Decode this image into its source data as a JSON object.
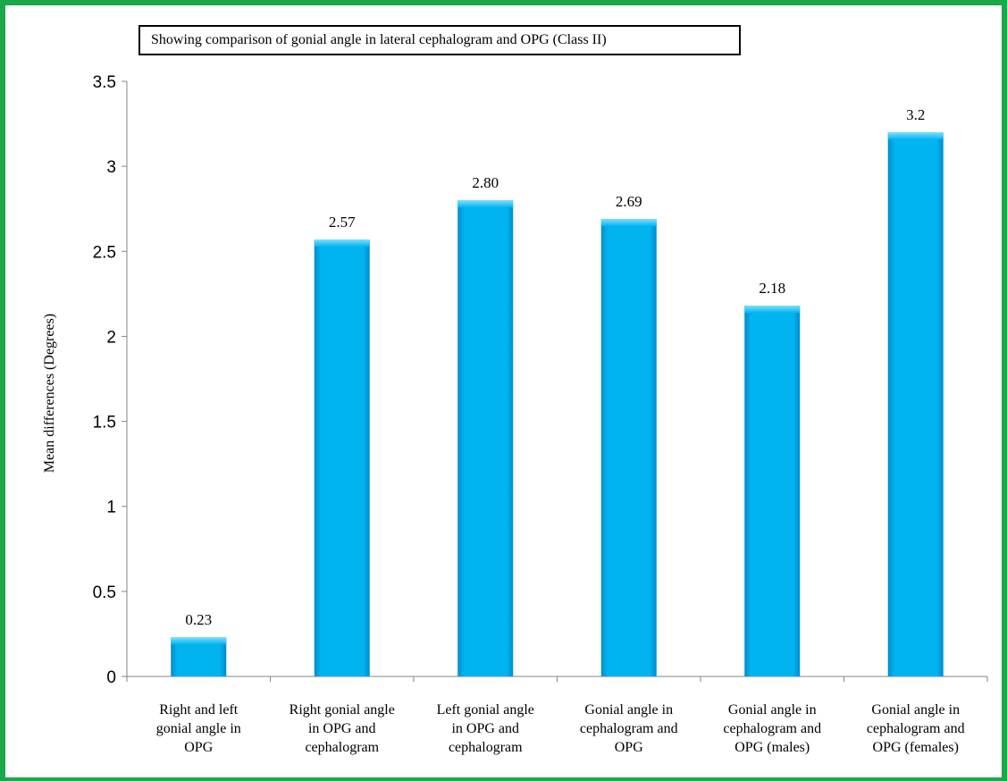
{
  "chart_data": {
    "type": "bar",
    "title": "Showing comparison of gonial angle in lateral cephalogram and OPG (Class II)",
    "xlabel": "",
    "ylabel": "Mean differences (Degrees)",
    "ylim": [
      0,
      3.5
    ],
    "yticks": [
      "0",
      "0.5",
      "1",
      "1.5",
      "2",
      "2.5",
      "3",
      "3.5"
    ],
    "grid": false,
    "categories": [
      [
        "Right and left",
        "gonial angle in",
        "OPG"
      ],
      [
        "Right gonial angle",
        "in OPG and",
        "cephalogram"
      ],
      [
        "Left gonial angle",
        "in OPG and",
        "cephalogram"
      ],
      [
        "Gonial angle in",
        "cephalogram and",
        "OPG"
      ],
      [
        "Gonial angle in",
        "cephalogram and",
        "OPG (males)"
      ],
      [
        "Gonial angle in",
        "cephalogram and",
        "OPG (females)"
      ]
    ],
    "values": [
      0.23,
      2.57,
      2.8,
      2.69,
      2.18,
      3.2
    ],
    "data_labels": [
      "0.23",
      "2.57",
      "2.80",
      "2.69",
      "2.18",
      "3.2"
    ],
    "colors": {
      "bar": "#00b4f0",
      "bar_light": "#7fe0ff",
      "bar_dark": "#008ccc",
      "frame": "#1aa84a",
      "axis": "#868686"
    }
  }
}
